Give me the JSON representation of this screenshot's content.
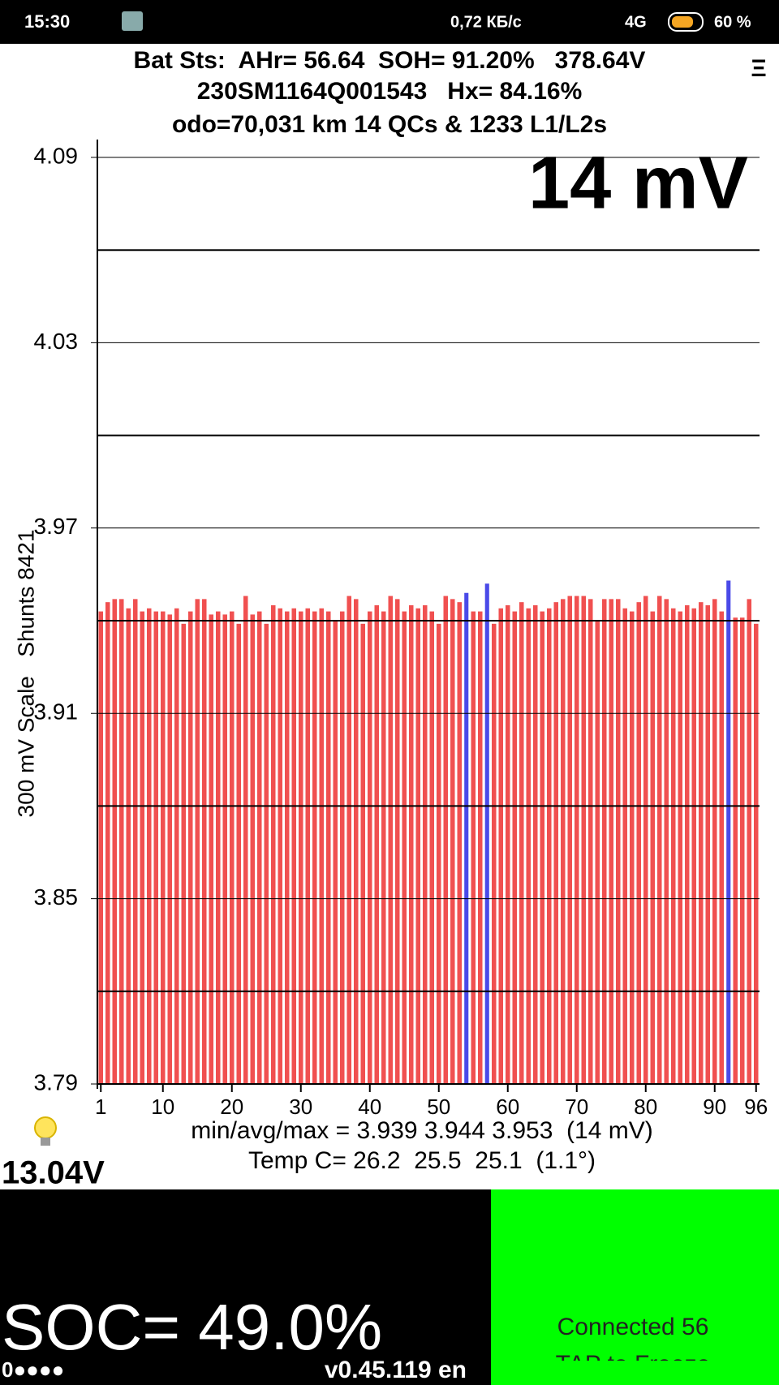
{
  "status_bar": {
    "time": "15:30",
    "network_speed": "0,72 КБ/с",
    "network": "4G",
    "battery": "60 %"
  },
  "header": {
    "line1": "Bat Sts:  AHr= 56.64  SOH= 91.20%   378.64V",
    "line2": "230SM1164Q001543   Hx= 84.16%",
    "line3": "odo=70,031 km 14 QCs & 1233 L1/L2s",
    "menu": "Ξ"
  },
  "chart_data": {
    "type": "bar",
    "delta_label": "14 mV",
    "y_label": "300 mV Scale   Shunts 8421",
    "x": [
      1,
      2,
      3,
      4,
      5,
      6,
      7,
      8,
      9,
      10,
      11,
      12,
      13,
      14,
      15,
      16,
      17,
      18,
      19,
      20,
      21,
      22,
      23,
      24,
      25,
      26,
      27,
      28,
      29,
      30,
      31,
      32,
      33,
      34,
      35,
      36,
      37,
      38,
      39,
      40,
      41,
      42,
      43,
      44,
      45,
      46,
      47,
      48,
      49,
      50,
      51,
      52,
      53,
      54,
      55,
      56,
      57,
      58,
      59,
      60,
      61,
      62,
      63,
      64,
      65,
      66,
      67,
      68,
      69,
      70,
      71,
      72,
      73,
      74,
      75,
      76,
      77,
      78,
      79,
      80,
      81,
      82,
      83,
      84,
      85,
      86,
      87,
      88,
      89,
      90,
      91,
      92,
      93,
      94,
      95,
      96
    ],
    "values": [
      3.943,
      3.946,
      3.947,
      3.947,
      3.944,
      3.947,
      3.943,
      3.944,
      3.943,
      3.943,
      3.942,
      3.944,
      3.939,
      3.943,
      3.947,
      3.947,
      3.942,
      3.943,
      3.942,
      3.943,
      3.939,
      3.948,
      3.942,
      3.943,
      3.939,
      3.945,
      3.944,
      3.943,
      3.944,
      3.943,
      3.944,
      3.943,
      3.944,
      3.943,
      3.94,
      3.943,
      3.948,
      3.947,
      3.939,
      3.943,
      3.945,
      3.943,
      3.948,
      3.947,
      3.943,
      3.945,
      3.944,
      3.945,
      3.943,
      3.939,
      3.948,
      3.947,
      3.946,
      3.949,
      3.943,
      3.943,
      3.952,
      3.939,
      3.944,
      3.945,
      3.943,
      3.946,
      3.944,
      3.945,
      3.943,
      3.944,
      3.946,
      3.947,
      3.948,
      3.948,
      3.948,
      3.947,
      3.94,
      3.947,
      3.947,
      3.947,
      3.944,
      3.943,
      3.946,
      3.948,
      3.943,
      3.948,
      3.947,
      3.944,
      3.943,
      3.945,
      3.944,
      3.946,
      3.945,
      3.947,
      3.943,
      3.953,
      3.941,
      3.941,
      3.947,
      3.939
    ],
    "color": "#f05050",
    "highlight_color": "#4a4ae8",
    "highlighted": [
      54,
      57,
      92
    ],
    "xlim": [
      0.5,
      96.5
    ],
    "xticks": [
      1,
      10,
      20,
      30,
      40,
      50,
      60,
      70,
      80,
      90,
      96
    ],
    "ylim": [
      3.79,
      4.09
    ],
    "yticks": [
      3.79,
      3.85,
      3.91,
      3.97,
      4.03,
      4.09
    ],
    "minor_gridlines": [
      3.82,
      3.88,
      3.94,
      4.0,
      4.06
    ]
  },
  "stats": {
    "minmax": "min/avg/max = 3.939 3.944 3.953  (14 mV)",
    "temp": "Temp C= 26.2  25.5  25.1  (1.1°)",
    "aux_voltage": "13.04V"
  },
  "footer": {
    "soc": "SOC= 49.0%",
    "status_dots": "0●●●●",
    "version": "v0.45.119 en",
    "connection": "Connected 56",
    "tap": "TAP to Freeze"
  }
}
